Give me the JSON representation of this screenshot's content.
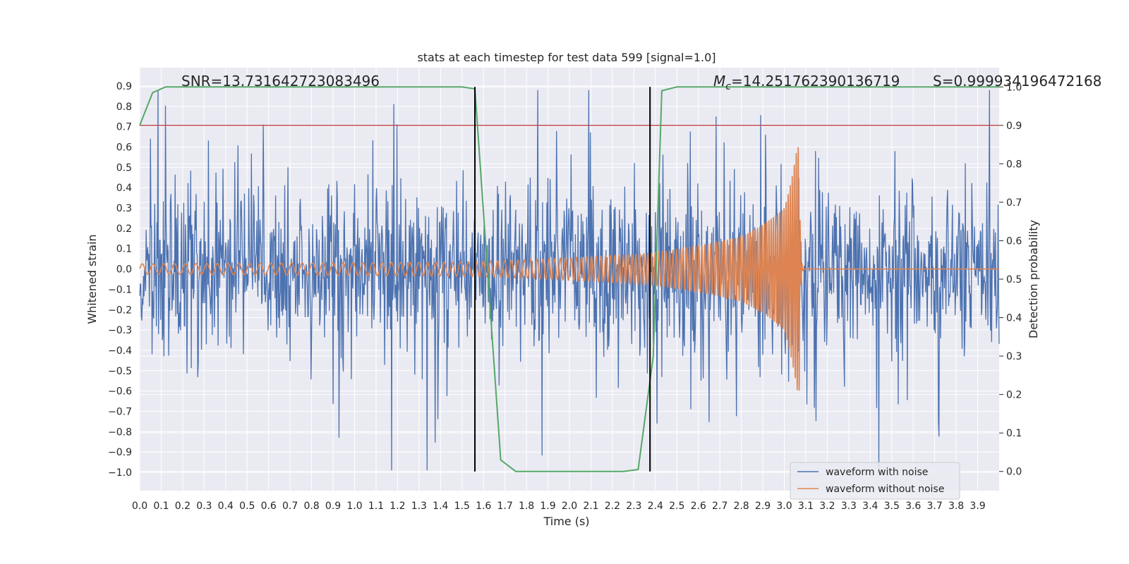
{
  "chart_data": {
    "type": "line",
    "title": "stats at each timestep for test data 599 [signal=1.0]",
    "xlabel": "Time (s)",
    "ylabel": "Whitened strain",
    "ylabel_right": "Detection probability",
    "xlim": [
      0.0,
      4.0
    ],
    "ylim": [
      -1.09,
      0.99
    ],
    "ylim_right": [
      -0.05,
      1.05
    ],
    "x_ticks": [
      "0.0",
      "0.1",
      "0.2",
      "0.3",
      "0.4",
      "0.5",
      "0.6",
      "0.7",
      "0.8",
      "0.9",
      "1.0",
      "1.1",
      "1.2",
      "1.3",
      "1.4",
      "1.5",
      "1.6",
      "1.7",
      "1.8",
      "1.9",
      "2.0",
      "2.1",
      "2.2",
      "2.3",
      "2.4",
      "2.5",
      "2.6",
      "2.7",
      "2.8",
      "2.9",
      "3.0",
      "3.1",
      "3.2",
      "3.3",
      "3.4",
      "3.5",
      "3.6",
      "3.7",
      "3.8",
      "3.9"
    ],
    "y_ticks": [
      "0.9",
      "0.8",
      "0.7",
      "0.6",
      "0.5",
      "0.4",
      "0.3",
      "0.2",
      "0.1",
      "0.0",
      "−0.1",
      "−0.2",
      "−0.3",
      "−0.4",
      "−0.5",
      "−0.6",
      "−0.7",
      "−0.8",
      "−0.9",
      "−1.0"
    ],
    "y_tick_values": [
      0.9,
      0.8,
      0.7,
      0.6,
      0.5,
      0.4,
      0.3,
      0.2,
      0.1,
      0.0,
      -0.1,
      -0.2,
      -0.3,
      -0.4,
      -0.5,
      -0.6,
      -0.7,
      -0.8,
      -0.9,
      -1.0
    ],
    "y2_ticks": [
      "1.0",
      "0.9",
      "0.8",
      "0.7",
      "0.6",
      "0.5",
      "0.4",
      "0.3",
      "0.2",
      "0.1",
      "0.0"
    ],
    "y2_tick_values": [
      1.0,
      0.9,
      0.8,
      0.7,
      0.6,
      0.5,
      0.4,
      0.3,
      0.2,
      0.1,
      0.0
    ],
    "annotations": {
      "snr": "SNR=13.731642723083496",
      "mc_symbol": "M",
      "mc_subscript": "c",
      "mc_value": "=14.251762390136719",
      "s": "S=0.999934196472168"
    },
    "series": [
      {
        "name": "waveform with noise",
        "color": "#4c72b0",
        "description": "whitened noisy strain, sampled noise; envelope about ±0.45 with spikes to ±0.9"
      },
      {
        "name": "waveform without noise",
        "color": "#dd8452",
        "envelope": {
          "t": [
            0.0,
            1.5,
            2.4,
            2.8,
            3.0,
            3.06
          ],
          "amp": [
            0.025,
            0.035,
            0.08,
            0.16,
            0.3,
            0.6
          ]
        },
        "merger_time": 3.07,
        "freq_hz": {
          "start": 20,
          "end": 110
        }
      }
    ],
    "detection_probability": {
      "name": "detection probability",
      "color": "#55a868",
      "x": [
        0.0,
        0.06,
        0.12,
        1.5,
        1.56,
        1.68,
        1.75,
        2.25,
        2.32,
        2.39,
        2.43,
        2.5,
        4.0
      ],
      "y": [
        0.9,
        0.985,
        1.0,
        1.0,
        0.995,
        0.03,
        0.0,
        0.0,
        0.005,
        0.3,
        0.99,
        1.0,
        1.0
      ]
    },
    "threshold": {
      "value": 0.9,
      "axis": "right",
      "color": "#c44e52"
    },
    "vlines": {
      "x": [
        1.56,
        2.375
      ],
      "color": "#000000"
    },
    "legend": {
      "location": "lower-right",
      "entries": [
        "waveform with noise",
        "waveform without noise"
      ]
    }
  }
}
